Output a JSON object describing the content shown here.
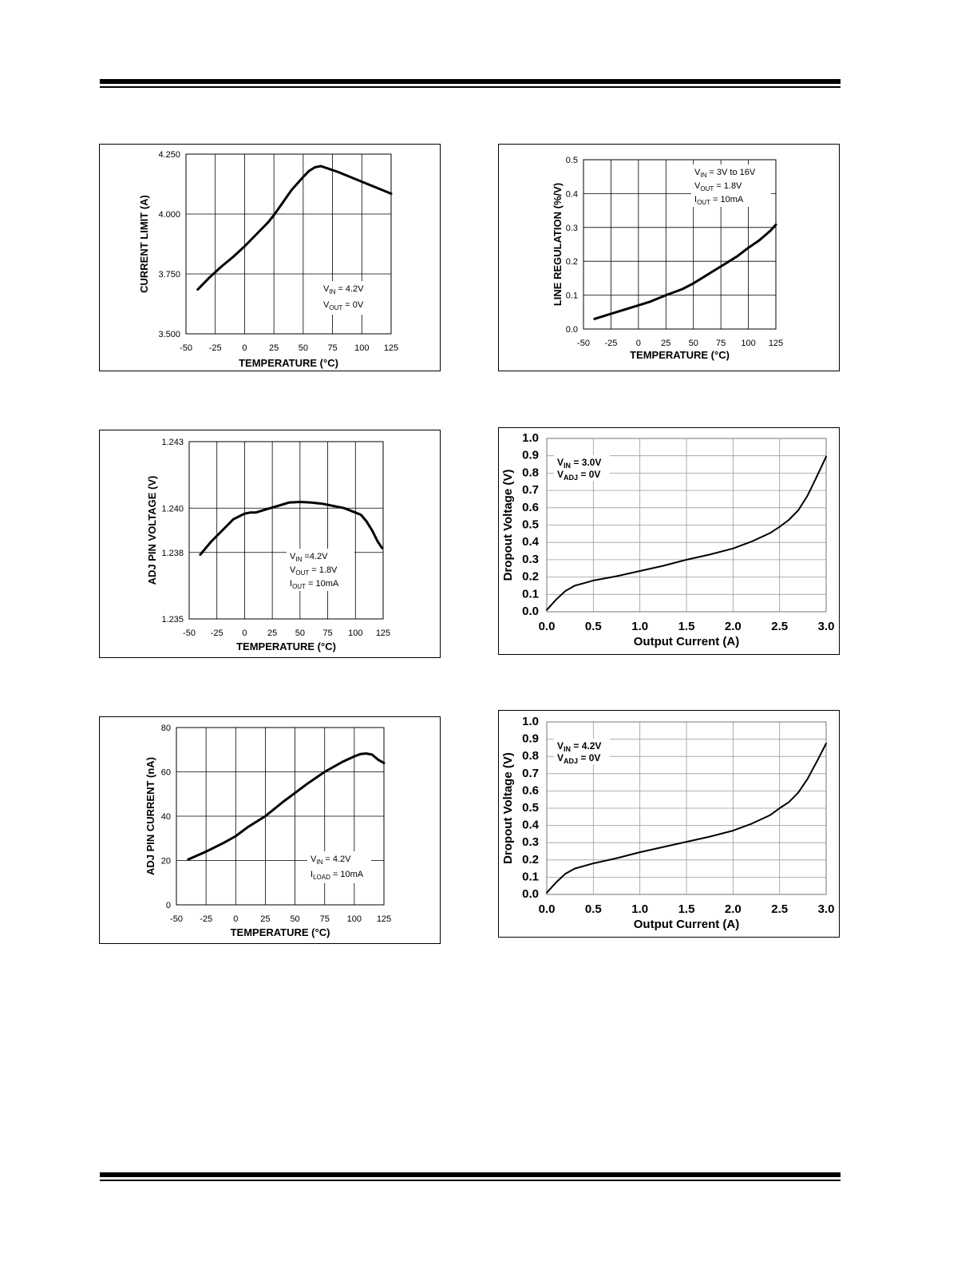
{
  "chart_data": [
    {
      "id": "current-limit",
      "type": "line",
      "title": "",
      "xlabel": "TEMPERATURE (°C)",
      "ylabel": "CURRENT LIMIT (A)",
      "xlim": [
        -50,
        125
      ],
      "ylim": [
        3.5,
        4.25
      ],
      "x_ticks": [
        -50,
        -25,
        0,
        25,
        50,
        75,
        100,
        125
      ],
      "y_ticks": [
        3.5,
        3.75,
        4.0,
        4.25
      ],
      "x_tick_labels": [
        "-50",
        "-25",
        "0",
        "25",
        "50",
        "75",
        "100",
        "125"
      ],
      "y_tick_labels": [
        "3.500",
        "3.750",
        "4.000",
        "4.250"
      ],
      "annotations": [
        {
          "main": "V",
          "sub": "IN",
          "rest": " = 4.2V"
        },
        {
          "main": "V",
          "sub": "OUT",
          "rest": " = 0V"
        }
      ],
      "series": [
        {
          "name": "Current Limit",
          "x": [
            -40,
            -30,
            -20,
            -10,
            0,
            10,
            20,
            25,
            30,
            40,
            50,
            55,
            60,
            65,
            70,
            80,
            90,
            100,
            110,
            120,
            125
          ],
          "y": [
            3.685,
            3.735,
            3.78,
            3.82,
            3.865,
            3.915,
            3.965,
            3.995,
            4.03,
            4.1,
            4.155,
            4.18,
            4.195,
            4.2,
            4.192,
            4.175,
            4.155,
            4.135,
            4.115,
            4.095,
            4.085
          ]
        }
      ]
    },
    {
      "id": "line-regulation",
      "type": "line",
      "title": "",
      "xlabel": "TEMPERATURE (°C)",
      "ylabel": "LINE REGULATION (%/V)",
      "xlim": [
        -50,
        125
      ],
      "ylim": [
        0,
        0.5
      ],
      "x_ticks": [
        -50,
        -25,
        0,
        25,
        50,
        75,
        100,
        125
      ],
      "y_ticks": [
        0,
        0.1,
        0.2,
        0.3,
        0.4,
        0.5
      ],
      "x_tick_labels": [
        "-50",
        "-25",
        "0",
        "25",
        "50",
        "75",
        "100",
        "125"
      ],
      "y_tick_labels": [
        "0.0",
        "0.1",
        "0.2",
        "0.3",
        "0.4",
        "0.5"
      ],
      "annotations": [
        {
          "main": "V",
          "sub": "IN",
          "rest": " = 3V to 16V"
        },
        {
          "main": "V",
          "sub": "OUT",
          "rest": " = 1.8V"
        },
        {
          "main": "I",
          "sub": "OUT",
          "rest": " = 10mA"
        }
      ],
      "series": [
        {
          "name": "Line Regulation",
          "x": [
            -40,
            -25,
            -10,
            0,
            10,
            25,
            40,
            50,
            60,
            75,
            90,
            100,
            110,
            120,
            125
          ],
          "y": [
            0.03,
            0.045,
            0.06,
            0.07,
            0.08,
            0.1,
            0.118,
            0.135,
            0.155,
            0.185,
            0.215,
            0.24,
            0.262,
            0.29,
            0.308
          ]
        }
      ]
    },
    {
      "id": "adj-pin-voltage",
      "type": "line",
      "title": "",
      "xlabel": "TEMPERATURE (°C)",
      "ylabel": "ADJ PIN VOLTAGE (V)",
      "xlim": [
        -50,
        125
      ],
      "ylim": [
        1.235,
        1.243
      ],
      "x_ticks": [
        -50,
        -25,
        0,
        25,
        50,
        75,
        100,
        125
      ],
      "y_ticks": [
        1.235,
        1.238,
        1.24,
        1.243
      ],
      "x_tick_labels": [
        "-50",
        "-25",
        "0",
        "25",
        "50",
        "75",
        "100",
        "125"
      ],
      "y_tick_labels": [
        "1.235",
        "1.238",
        "1.240",
        "1.243"
      ],
      "annotations": [
        {
          "main": "V",
          "sub": "IN",
          "rest": " =4.2V"
        },
        {
          "main": "V",
          "sub": "OUT",
          "rest": " = 1.8V"
        },
        {
          "main": "I",
          "sub": "OUT",
          "rest": " = 10mA"
        }
      ],
      "series": [
        {
          "name": "ADJ Pin Voltage",
          "x": [
            -40,
            -30,
            -20,
            -10,
            0,
            5,
            10,
            20,
            30,
            40,
            50,
            60,
            70,
            80,
            90,
            100,
            105,
            110,
            115,
            120,
            124
          ],
          "y": [
            1.2379,
            1.2385,
            1.239,
            1.2395,
            1.23975,
            1.2398,
            1.2398,
            1.23995,
            1.2401,
            1.24025,
            1.24028,
            1.24025,
            1.2402,
            1.2401,
            1.24,
            1.2398,
            1.2397,
            1.2394,
            1.239,
            1.2385,
            1.2382
          ]
        }
      ]
    },
    {
      "id": "dropout-3v",
      "type": "line",
      "title": "",
      "xlabel": "Output Current (A)",
      "ylabel": "Dropout Voltage (V)",
      "xlim": [
        0,
        3
      ],
      "ylim": [
        0,
        1
      ],
      "x_ticks": [
        0,
        0.5,
        1,
        1.5,
        2,
        2.5,
        3
      ],
      "y_ticks": [
        0,
        0.1,
        0.2,
        0.3,
        0.4,
        0.5,
        0.6,
        0.7,
        0.8,
        0.9,
        1.0
      ],
      "x_tick_labels": [
        "0.0",
        "0.5",
        "1.0",
        "1.5",
        "2.0",
        "2.5",
        "3.0"
      ],
      "y_tick_labels": [
        "0.0",
        "0.1",
        "0.2",
        "0.3",
        "0.4",
        "0.5",
        "0.6",
        "0.7",
        "0.8",
        "0.9",
        "1.0"
      ],
      "annotations": [
        {
          "main": "V",
          "sub": "IN",
          "rest": " = 3.0V"
        },
        {
          "main": "V",
          "sub": "ADJ",
          "rest": " = 0V"
        }
      ],
      "series": [
        {
          "name": "VIN = 3.0V",
          "x": [
            0,
            0.1,
            0.2,
            0.3,
            0.4,
            0.5,
            0.75,
            1.0,
            1.25,
            1.5,
            1.75,
            2.0,
            2.2,
            2.4,
            2.5,
            2.6,
            2.7,
            2.8,
            2.9,
            3.0
          ],
          "y": [
            0.01,
            0.07,
            0.12,
            0.15,
            0.165,
            0.18,
            0.205,
            0.235,
            0.265,
            0.3,
            0.33,
            0.365,
            0.405,
            0.455,
            0.49,
            0.53,
            0.585,
            0.67,
            0.78,
            0.895
          ]
        }
      ]
    },
    {
      "id": "adj-pin-current",
      "type": "line",
      "title": "",
      "xlabel": "TEMPERATURE (°C)",
      "ylabel": "ADJ PIN CURRENT (nA)",
      "xlim": [
        -50,
        125
      ],
      "ylim": [
        0,
        80
      ],
      "x_ticks": [
        -50,
        -25,
        0,
        25,
        50,
        75,
        100,
        125
      ],
      "y_ticks": [
        0,
        20,
        40,
        60,
        80
      ],
      "x_tick_labels": [
        "-50",
        "-25",
        "0",
        "25",
        "50",
        "75",
        "100",
        "125"
      ],
      "y_tick_labels": [
        "0",
        "20",
        "40",
        "60",
        "80"
      ],
      "annotations": [
        {
          "main": "V",
          "sub": "IN",
          "rest": " = 4.2V"
        },
        {
          "main": "I",
          "sub": "LOAD",
          "rest": " = 10mA"
        }
      ],
      "series": [
        {
          "name": "ADJ Pin Current",
          "x": [
            -40,
            -25,
            -10,
            0,
            10,
            25,
            40,
            50,
            60,
            75,
            90,
            100,
            105,
            110,
            115,
            120,
            125
          ],
          "y": [
            20.5,
            24,
            28,
            31,
            35,
            40,
            46.5,
            50.5,
            54.5,
            60,
            64.5,
            67,
            68,
            68.3,
            67.8,
            65.5,
            64
          ]
        }
      ]
    },
    {
      "id": "dropout-4v2",
      "type": "line",
      "title": "",
      "xlabel": "Output Current (A)",
      "ylabel": "Dropout Voltage (V)",
      "xlim": [
        0,
        3
      ],
      "ylim": [
        0,
        1
      ],
      "x_ticks": [
        0,
        0.5,
        1,
        1.5,
        2,
        2.5,
        3
      ],
      "y_ticks": [
        0,
        0.1,
        0.2,
        0.3,
        0.4,
        0.5,
        0.6,
        0.7,
        0.8,
        0.9,
        1.0
      ],
      "x_tick_labels": [
        "0.0",
        "0.5",
        "1.0",
        "1.5",
        "2.0",
        "2.5",
        "3.0"
      ],
      "y_tick_labels": [
        "0.0",
        "0.1",
        "0.2",
        "0.3",
        "0.4",
        "0.5",
        "0.6",
        "0.7",
        "0.8",
        "0.9",
        "1.0"
      ],
      "annotations": [
        {
          "main": "V",
          "sub": "IN",
          "rest": " = 4.2V"
        },
        {
          "main": "V",
          "sub": "ADJ",
          "rest": " = 0V"
        }
      ],
      "series": [
        {
          "name": "VIN = 4.2V",
          "x": [
            0,
            0.1,
            0.2,
            0.3,
            0.4,
            0.5,
            0.75,
            1.0,
            1.25,
            1.5,
            1.75,
            2.0,
            2.2,
            2.4,
            2.5,
            2.6,
            2.7,
            2.8,
            2.9,
            3.0
          ],
          "y": [
            0.01,
            0.07,
            0.12,
            0.15,
            0.165,
            0.18,
            0.21,
            0.245,
            0.275,
            0.305,
            0.335,
            0.37,
            0.41,
            0.46,
            0.5,
            0.535,
            0.59,
            0.67,
            0.77,
            0.875
          ]
        }
      ]
    }
  ]
}
